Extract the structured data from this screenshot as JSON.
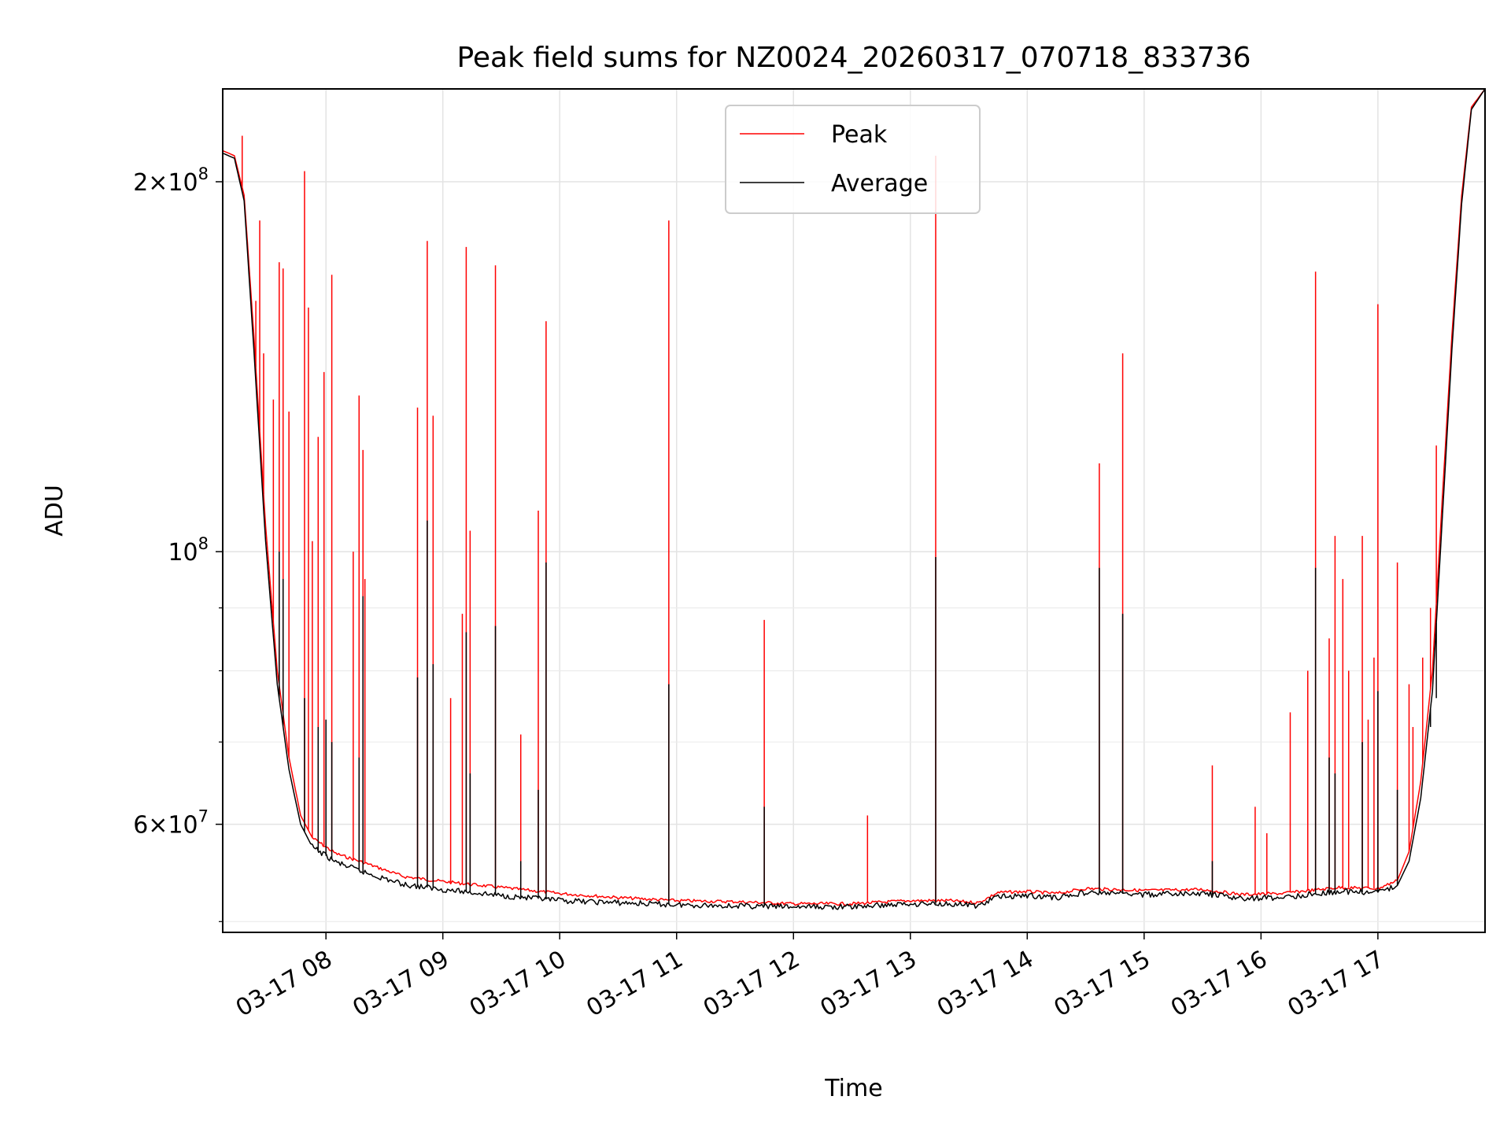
{
  "chart_data": {
    "type": "line",
    "title": "Peak field sums for NZ0024_20260317_070718_833736",
    "xlabel": "Time",
    "ylabel": "ADU",
    "y_scale": "log",
    "x_range": [
      "03-17 07:07",
      "03-17 17:55"
    ],
    "ylim": [
      49000000,
      238000000
    ],
    "grid": true,
    "legend": {
      "placement": "upper center"
    },
    "x_ticks": [
      "03-17 08",
      "03-17 09",
      "03-17 10",
      "03-17 11",
      "03-17 12",
      "03-17 13",
      "03-17 14",
      "03-17 15",
      "03-17 16",
      "03-17 17"
    ],
    "y_tick_labels": [
      {
        "value": 200000000,
        "label": "2×10⁸",
        "base": "2×10",
        "exp": "8"
      },
      {
        "value": 100000000,
        "label": "10⁸",
        "base": "10",
        "exp": "8"
      },
      {
        "value": 60000000,
        "label": "6×10⁷",
        "base": "6×10",
        "exp": "7"
      }
    ],
    "y_minor_ticks": [
      50000000,
      70000000,
      80000000,
      90000000
    ],
    "series": [
      {
        "name": "Peak",
        "color": "#ff0000",
        "baseline": [
          [
            "03-17 07:07",
            212000000
          ],
          [
            "03-17 07:13",
            210000000
          ],
          [
            "03-17 07:18",
            195000000
          ],
          [
            "03-17 07:23",
            150000000
          ],
          [
            "03-17 07:29",
            105000000
          ],
          [
            "03-17 07:35",
            80000000
          ],
          [
            "03-17 07:41",
            68000000
          ],
          [
            "03-17 07:47",
            61000000
          ],
          [
            "03-17 07:53",
            58500000
          ],
          [
            "03-17 08:05",
            56800000
          ],
          [
            "03-17 08:20",
            55800000
          ],
          [
            "03-17 08:40",
            54400000
          ],
          [
            "03-17 09:00",
            53900000
          ],
          [
            "03-17 09:30",
            53300000
          ],
          [
            "03-17 10:00",
            52700000
          ],
          [
            "03-17 10:30",
            52300000
          ],
          [
            "03-17 11:00",
            52000000
          ],
          [
            "03-17 11:30",
            51900000
          ],
          [
            "03-17 12:00",
            51700000
          ],
          [
            "03-17 12:30",
            51700000
          ],
          [
            "03-17 13:00",
            52000000
          ],
          [
            "03-17 13:20",
            52000000
          ],
          [
            "03-17 13:35",
            51800000
          ],
          [
            "03-17 13:45",
            52800000
          ],
          [
            "03-17 14:00",
            52900000
          ],
          [
            "03-17 14:15",
            52700000
          ],
          [
            "03-17 14:30",
            53200000
          ],
          [
            "03-17 15:00",
            53000000
          ],
          [
            "03-17 15:30",
            53100000
          ],
          [
            "03-17 15:50",
            52600000
          ],
          [
            "03-17 16:10",
            52700000
          ],
          [
            "03-17 16:40",
            53300000
          ],
          [
            "03-17 17:00",
            53200000
          ],
          [
            "03-17 17:10",
            54000000
          ],
          [
            "03-17 17:16",
            57000000
          ],
          [
            "03-17 17:22",
            65000000
          ],
          [
            "03-17 17:28",
            80000000
          ],
          [
            "03-17 17:33",
            110000000
          ],
          [
            "03-17 17:38",
            150000000
          ],
          [
            "03-17 17:43",
            195000000
          ],
          [
            "03-17 17:48",
            230000000
          ],
          [
            "03-17 17:55",
            238000000
          ]
        ],
        "spikes": [
          [
            "03-17 07:17",
            218000000
          ],
          [
            "03-17 07:24",
            160000000
          ],
          [
            "03-17 07:26",
            186000000
          ],
          [
            "03-17 07:28",
            145000000
          ],
          [
            "03-17 07:33",
            133000000
          ],
          [
            "03-17 07:36",
            172000000
          ],
          [
            "03-17 07:38",
            170000000
          ],
          [
            "03-17 07:41",
            130000000
          ],
          [
            "03-17 07:49",
            204000000
          ],
          [
            "03-17 07:51",
            158000000
          ],
          [
            "03-17 07:53",
            102000000
          ],
          [
            "03-17 07:56",
            124000000
          ],
          [
            "03-17 07:59",
            140000000
          ],
          [
            "03-17 08:03",
            168000000
          ],
          [
            "03-17 08:14",
            100000000
          ],
          [
            "03-17 08:17",
            134000000
          ],
          [
            "03-17 08:19",
            121000000
          ],
          [
            "03-17 08:20",
            95000000
          ],
          [
            "03-17 08:47",
            131000000
          ],
          [
            "03-17 08:52",
            179000000
          ],
          [
            "03-17 08:55",
            129000000
          ],
          [
            "03-17 09:04",
            76000000
          ],
          [
            "03-17 09:10",
            89000000
          ],
          [
            "03-17 09:12",
            177000000
          ],
          [
            "03-17 09:14",
            104000000
          ],
          [
            "03-17 09:27",
            171000000
          ],
          [
            "03-17 09:40",
            71000000
          ],
          [
            "03-17 09:49",
            108000000
          ],
          [
            "03-17 09:53",
            154000000
          ],
          [
            "03-17 10:56",
            186000000
          ],
          [
            "03-17 11:45",
            88000000
          ],
          [
            "03-17 12:38",
            61000000
          ],
          [
            "03-17 13:13",
            210000000
          ],
          [
            "03-17 14:37",
            118000000
          ],
          [
            "03-17 14:49",
            145000000
          ],
          [
            "03-17 15:35",
            67000000
          ],
          [
            "03-17 15:57",
            62000000
          ],
          [
            "03-17 16:03",
            59000000
          ],
          [
            "03-17 16:15",
            74000000
          ],
          [
            "03-17 16:24",
            80000000
          ],
          [
            "03-17 16:28",
            169000000
          ],
          [
            "03-17 16:35",
            85000000
          ],
          [
            "03-17 16:38",
            103000000
          ],
          [
            "03-17 16:42",
            95000000
          ],
          [
            "03-17 16:45",
            80000000
          ],
          [
            "03-17 16:52",
            103000000
          ],
          [
            "03-17 16:55",
            73000000
          ],
          [
            "03-17 16:58",
            82000000
          ],
          [
            "03-17 17:00",
            159000000
          ],
          [
            "03-17 17:10",
            98000000
          ],
          [
            "03-17 17:16",
            78000000
          ],
          [
            "03-17 17:18",
            72000000
          ],
          [
            "03-17 17:23",
            82000000
          ],
          [
            "03-17 17:27",
            90000000
          ],
          [
            "03-17 17:30",
            122000000
          ]
        ]
      },
      {
        "name": "Average",
        "color": "#000000",
        "baseline": [
          [
            "03-17 07:07",
            211000000
          ],
          [
            "03-17 07:13",
            209000000
          ],
          [
            "03-17 07:18",
            193000000
          ],
          [
            "03-17 07:23",
            146000000
          ],
          [
            "03-17 07:29",
            102000000
          ],
          [
            "03-17 07:35",
            78000000
          ],
          [
            "03-17 07:41",
            66500000
          ],
          [
            "03-17 07:47",
            60000000
          ],
          [
            "03-17 07:53",
            57500000
          ],
          [
            "03-17 08:05",
            55900000
          ],
          [
            "03-17 08:20",
            54800000
          ],
          [
            "03-17 08:40",
            53600000
          ],
          [
            "03-17 09:00",
            53100000
          ],
          [
            "03-17 09:30",
            52500000
          ],
          [
            "03-17 10:00",
            52000000
          ],
          [
            "03-17 10:30",
            51800000
          ],
          [
            "03-17 11:00",
            51600000
          ],
          [
            "03-17 11:30",
            51500000
          ],
          [
            "03-17 12:00",
            51400000
          ],
          [
            "03-17 12:30",
            51400000
          ],
          [
            "03-17 13:00",
            51700000
          ],
          [
            "03-17 13:20",
            51700000
          ],
          [
            "03-17 13:35",
            51500000
          ],
          [
            "03-17 13:45",
            52400000
          ],
          [
            "03-17 14:00",
            52500000
          ],
          [
            "03-17 14:15",
            52300000
          ],
          [
            "03-17 14:30",
            52800000
          ],
          [
            "03-17 15:00",
            52600000
          ],
          [
            "03-17 15:30",
            52700000
          ],
          [
            "03-17 15:50",
            52200000
          ],
          [
            "03-17 16:10",
            52300000
          ],
          [
            "03-17 16:40",
            52900000
          ],
          [
            "03-17 17:00",
            52800000
          ],
          [
            "03-17 17:10",
            53500000
          ],
          [
            "03-17 17:16",
            56000000
          ],
          [
            "03-17 17:22",
            63000000
          ],
          [
            "03-17 17:28",
            77000000
          ],
          [
            "03-17 17:33",
            106000000
          ],
          [
            "03-17 17:38",
            146000000
          ],
          [
            "03-17 17:43",
            192000000
          ],
          [
            "03-17 17:48",
            229000000
          ],
          [
            "03-17 17:55",
            238000000
          ]
        ],
        "spikes": [
          [
            "03-17 07:36",
            100000000
          ],
          [
            "03-17 07:38",
            95000000
          ],
          [
            "03-17 07:49",
            76000000
          ],
          [
            "03-17 07:56",
            72000000
          ],
          [
            "03-17 08:00",
            73000000
          ],
          [
            "03-17 08:03",
            70000000
          ],
          [
            "03-17 08:19",
            92000000
          ],
          [
            "03-17 08:17",
            68000000
          ],
          [
            "03-17 08:47",
            79000000
          ],
          [
            "03-17 08:52",
            106000000
          ],
          [
            "03-17 08:55",
            81000000
          ],
          [
            "03-17 09:12",
            86000000
          ],
          [
            "03-17 09:14",
            66000000
          ],
          [
            "03-17 09:27",
            87000000
          ],
          [
            "03-17 09:40",
            56000000
          ],
          [
            "03-17 09:49",
            64000000
          ],
          [
            "03-17 09:53",
            98000000
          ],
          [
            "03-17 10:56",
            78000000
          ],
          [
            "03-17 11:45",
            62000000
          ],
          [
            "03-17 13:13",
            99000000
          ],
          [
            "03-17 14:37",
            97000000
          ],
          [
            "03-17 14:49",
            89000000
          ],
          [
            "03-17 15:35",
            56000000
          ],
          [
            "03-17 16:28",
            97000000
          ],
          [
            "03-17 16:35",
            68000000
          ],
          [
            "03-17 16:38",
            66000000
          ],
          [
            "03-17 16:52",
            70000000
          ],
          [
            "03-17 17:00",
            77000000
          ],
          [
            "03-17 17:10",
            64000000
          ],
          [
            "03-17 17:27",
            72000000
          ],
          [
            "03-17 17:30",
            76000000
          ]
        ]
      }
    ]
  }
}
